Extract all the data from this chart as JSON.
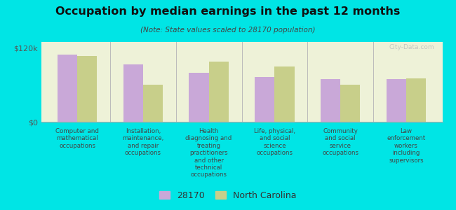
{
  "title": "Occupation by median earnings in the past 12 months",
  "subtitle": "(Note: State values scaled to 28170 population)",
  "background_color": "#00e5e5",
  "plot_bg_color": "#eef2d8",
  "bar_color_28170": "#c9a8d8",
  "bar_color_nc": "#c8cf8a",
  "categories": [
    "Computer and\nmathematical\noccupations",
    "Installation,\nmaintenance,\nand repair\noccupations",
    "Health\ndiagnosing and\ntreating\npractitioners\nand other\ntechnical\noccupations",
    "Life, physical,\nand social\nscience\noccupations",
    "Community\nand social\nservice\noccupations",
    "Law\nenforcement\nworkers\nincluding\nsupervisors"
  ],
  "values_28170": [
    110000,
    93000,
    80000,
    73000,
    70000,
    70000
  ],
  "values_nc": [
    107000,
    60000,
    98000,
    90000,
    60000,
    71000
  ],
  "ylim": [
    0,
    130000
  ],
  "yticks": [
    0,
    120000
  ],
  "ytick_labels": [
    "$0",
    "$120k"
  ],
  "legend_28170": "28170",
  "legend_nc": "North Carolina",
  "watermark": "City-Data.com"
}
